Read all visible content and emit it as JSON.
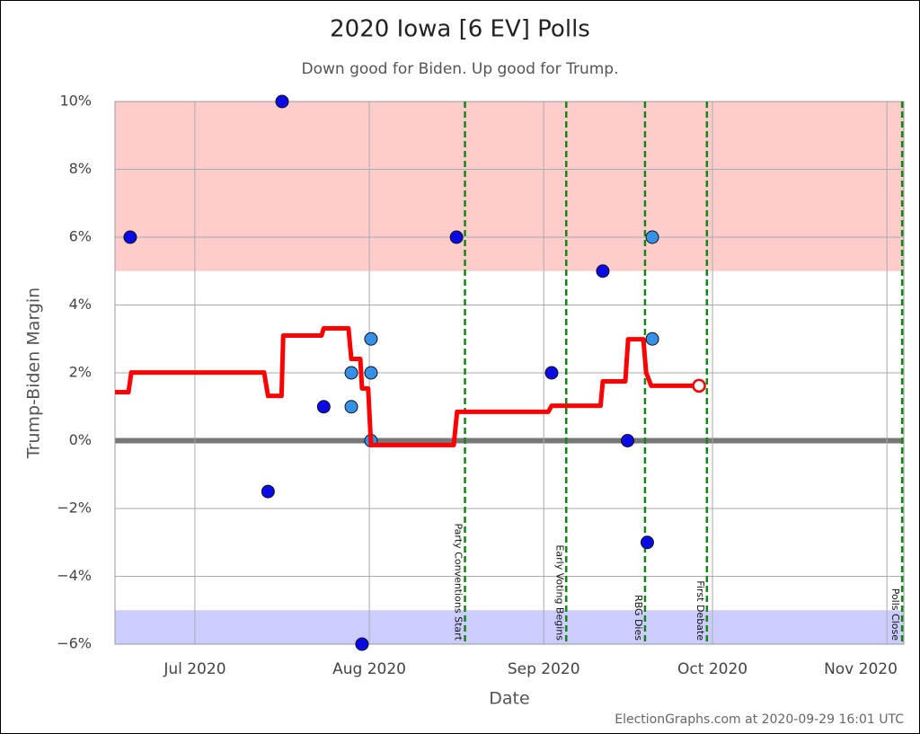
{
  "chart_data": {
    "type": "line",
    "title": "2020 Iowa [6 EV] Polls",
    "subtitle": "Down good for Biden. Up good for Trump.",
    "x_label": "Date",
    "y_label": "Trump-Biden Margin",
    "footer": "ElectionGraphs.com at 2020-09-29 16:01 UTC",
    "xlim": [
      168.8,
      309
    ],
    "ylim": [
      -6,
      10
    ],
    "xticks": [
      {
        "value": 183,
        "label": "Jul 2020"
      },
      {
        "value": 214,
        "label": "Aug 2020"
      },
      {
        "value": 245,
        "label": "Sep 2020"
      },
      {
        "value": 275,
        "label": "Oct 2020"
      },
      {
        "value": 306,
        "label": "Nov 2020"
      }
    ],
    "yticks": [
      {
        "value": -6,
        "label": "−6%"
      },
      {
        "value": -4,
        "label": "−4%"
      },
      {
        "value": -2,
        "label": "−2%"
      },
      {
        "value": 0,
        "label": "0%"
      },
      {
        "value": 2,
        "label": "2%"
      },
      {
        "value": 4,
        "label": "4%"
      },
      {
        "value": 6,
        "label": "6%"
      },
      {
        "value": 8,
        "label": "8%"
      },
      {
        "value": 10,
        "label": "10%"
      }
    ],
    "grid": true,
    "zero_line": true,
    "bands": [
      {
        "ylim": [
          5,
          10
        ],
        "color": "#ffcccc"
      },
      {
        "ylim": [
          -6,
          -5
        ],
        "color": "#ccccff"
      }
    ],
    "events": [
      {
        "x": 231,
        "label": "Party Conventions Start"
      },
      {
        "x": 249,
        "label": "Early Voting Begins"
      },
      {
        "x": 263,
        "label": "RBG Dies"
      },
      {
        "x": 274,
        "label": "First Debate"
      },
      {
        "x": 308.7,
        "label": "Polls Close"
      }
    ],
    "event_color": "#118811",
    "series": [
      {
        "type": "scatter",
        "color": "#0a0ae6",
        "x": [
          171.5,
          196,
          198.5,
          205.9,
          212.7,
          229.5,
          246.4,
          255.5,
          259.9,
          263.4
        ],
        "values": [
          6,
          -1.5,
          10,
          1,
          -6,
          6,
          2,
          5,
          0,
          -3
        ]
      },
      {
        "type": "scatter",
        "color": "#3590e8",
        "x": [
          210.8,
          210.8,
          214.3,
          214.3,
          214.3,
          264.3,
          264.3
        ],
        "values": [
          1,
          2,
          3,
          2,
          0,
          6,
          3
        ]
      },
      {
        "type": "line",
        "color": "#ff0000",
        "x": [
          168.8,
          171.2,
          171.7,
          195.3,
          196,
          198.4,
          198.7,
          205.5,
          205.9,
          210.3,
          210.8,
          212.4,
          212.7,
          213.8,
          214.3,
          229.0,
          229.6,
          245.8,
          246.4,
          255.1,
          255.5,
          259.5,
          260.0,
          262.7,
          263.2,
          264.1,
          272.6
        ],
        "values": [
          1.43,
          1.43,
          2.01,
          2.01,
          1.32,
          1.32,
          3.1,
          3.1,
          3.31,
          3.31,
          2.41,
          2.41,
          1.54,
          1.54,
          -0.13,
          -0.13,
          0.85,
          0.85,
          1.03,
          1.03,
          1.75,
          1.75,
          2.99,
          2.99,
          2.01,
          1.62,
          1.62
        ]
      }
    ]
  }
}
